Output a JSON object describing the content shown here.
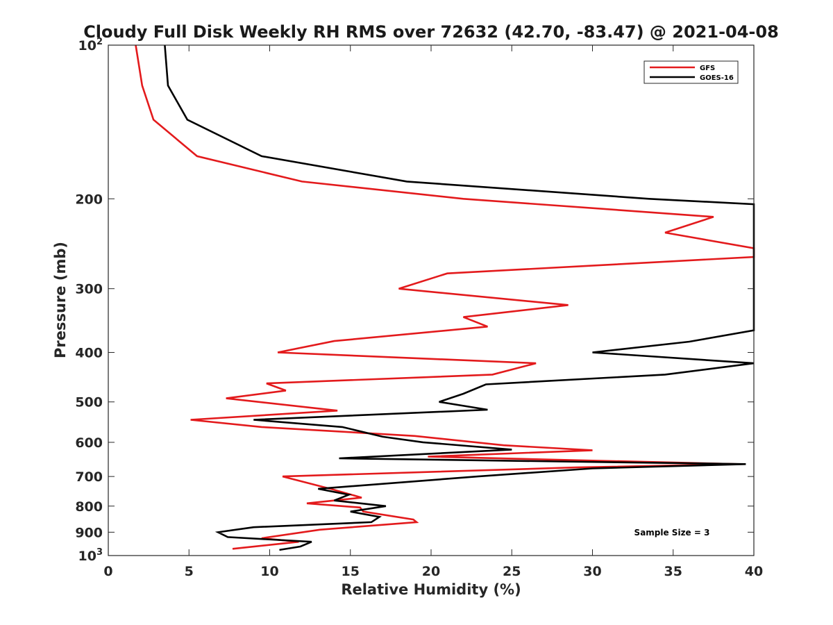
{
  "chart_data": {
    "type": "line",
    "title": "Cloudy Full Disk Weekly RH RMS over 72632 (42.70, -83.47) @ 2021-04-08",
    "xlabel": "Relative Humidity (%)",
    "ylabel": "Pressure (mb)",
    "xlim": [
      0,
      40
    ],
    "ylim": [
      100,
      1000
    ],
    "y_scale": "log",
    "y_reversed": true,
    "grid": false,
    "legend_position": "top-right",
    "x_ticks": [
      "0",
      "5",
      "10",
      "15",
      "20",
      "25",
      "30",
      "35",
      "40"
    ],
    "y_ticks": [
      {
        "value": 100,
        "base": "10",
        "exp": "2"
      },
      {
        "value": 200,
        "base": "200",
        "exp": ""
      },
      {
        "value": 300,
        "base": "300",
        "exp": ""
      },
      {
        "value": 400,
        "base": "400",
        "exp": ""
      },
      {
        "value": 500,
        "base": "500",
        "exp": ""
      },
      {
        "value": 600,
        "base": "600",
        "exp": ""
      },
      {
        "value": 700,
        "base": "700",
        "exp": ""
      },
      {
        "value": 800,
        "base": "800",
        "exp": ""
      },
      {
        "value": 900,
        "base": "900",
        "exp": ""
      },
      {
        "value": 1000,
        "base": "10",
        "exp": "3"
      }
    ],
    "annotation": "Sample Size = 3",
    "series": [
      {
        "name": "GFS",
        "color": "#e31a1c",
        "points": [
          [
            1.7,
            100
          ],
          [
            2.1,
            120
          ],
          [
            2.8,
            140
          ],
          [
            5.5,
            165
          ],
          [
            12.0,
            185
          ],
          [
            22.0,
            200
          ],
          [
            37.5,
            217
          ],
          [
            34.5,
            233
          ],
          [
            40.0,
            250
          ],
          [
            40.0,
            260
          ],
          [
            21.0,
            280
          ],
          [
            18.0,
            300
          ],
          [
            28.5,
            323
          ],
          [
            22.0,
            341
          ],
          [
            23.5,
            356
          ],
          [
            14.0,
            380
          ],
          [
            10.5,
            400
          ],
          [
            26.5,
            420
          ],
          [
            23.8,
            442
          ],
          [
            9.8,
            460
          ],
          [
            11.0,
            475
          ],
          [
            7.3,
            492
          ],
          [
            14.2,
            520
          ],
          [
            5.1,
            542
          ],
          [
            9.5,
            560
          ],
          [
            19.0,
            583
          ],
          [
            24.5,
            608
          ],
          [
            30.0,
            622
          ],
          [
            19.8,
            640
          ],
          [
            39.0,
            662
          ],
          [
            29.0,
            672
          ],
          [
            10.8,
            700
          ],
          [
            13.9,
            742
          ],
          [
            15.7,
            770
          ],
          [
            12.3,
            790
          ],
          [
            15.6,
            805
          ],
          [
            15.8,
            820
          ],
          [
            18.9,
            850
          ],
          [
            19.1,
            860
          ],
          [
            13.1,
            890
          ],
          [
            9.5,
            925
          ],
          [
            11.8,
            940
          ],
          [
            7.7,
            970
          ]
        ]
      },
      {
        "name": "GOES-16",
        "color": "#000000",
        "points": [
          [
            3.5,
            100
          ],
          [
            3.7,
            120
          ],
          [
            4.9,
            140
          ],
          [
            9.5,
            165
          ],
          [
            18.5,
            185
          ],
          [
            33.5,
            200
          ],
          [
            40.0,
            205
          ],
          [
            40.0,
            362
          ],
          [
            36.0,
            381
          ],
          [
            30.0,
            400
          ],
          [
            40.0,
            420
          ],
          [
            34.5,
            442
          ],
          [
            23.4,
            462
          ],
          [
            22.0,
            482
          ],
          [
            20.5,
            500
          ],
          [
            23.5,
            518
          ],
          [
            9.0,
            542
          ],
          [
            14.5,
            560
          ],
          [
            17.0,
            585
          ],
          [
            19.5,
            600
          ],
          [
            25.0,
            620
          ],
          [
            14.3,
            645
          ],
          [
            39.5,
            662
          ],
          [
            30.0,
            675
          ],
          [
            22.9,
            700
          ],
          [
            13.0,
            740
          ],
          [
            14.9,
            760
          ],
          [
            14.0,
            780
          ],
          [
            17.2,
            800
          ],
          [
            15.0,
            820
          ],
          [
            16.8,
            840
          ],
          [
            16.3,
            860
          ],
          [
            9.0,
            880
          ],
          [
            6.8,
            900
          ],
          [
            7.4,
            920
          ],
          [
            12.6,
            940
          ],
          [
            11.9,
            960
          ],
          [
            10.6,
            975
          ]
        ]
      }
    ]
  }
}
